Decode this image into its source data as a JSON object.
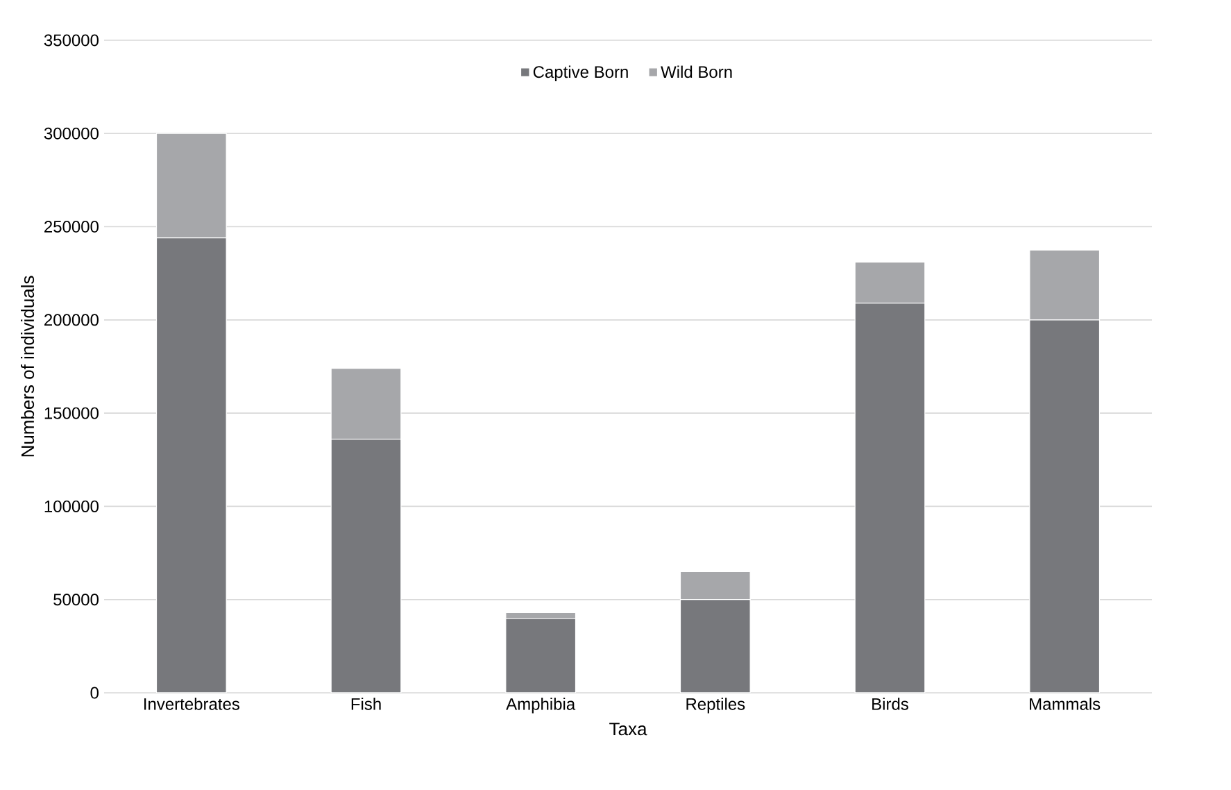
{
  "chart_data": {
    "type": "bar",
    "stacked": true,
    "xlabel": "Taxa",
    "ylabel": "Numbers of individuals",
    "categories": [
      "Invertebrates",
      "Fish",
      "Amphibia",
      "Reptiles",
      "Birds",
      "Mammals"
    ],
    "series": [
      {
        "name": "Captive Born",
        "color": "#77787c",
        "values": [
          244000,
          136000,
          40000,
          50000,
          209000,
          200000
        ]
      },
      {
        "name": "Wild Born",
        "color": "#a6a7aa",
        "values": [
          56000,
          38000,
          3000,
          15000,
          22000,
          37500
        ]
      }
    ],
    "ylim": [
      0,
      350000
    ],
    "yticks": [
      0,
      50000,
      100000,
      150000,
      200000,
      250000,
      300000,
      350000
    ],
    "grid": "y",
    "legend": "top"
  }
}
